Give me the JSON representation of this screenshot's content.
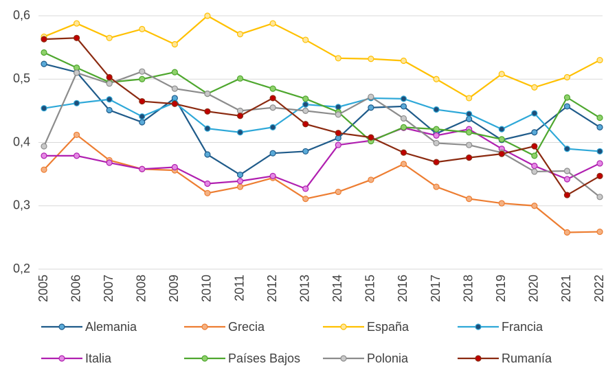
{
  "chart_data": {
    "type": "line",
    "categories": [
      "2005",
      "2006",
      "2007",
      "2008",
      "2009",
      "2010",
      "2011",
      "2012",
      "2013",
      "2014",
      "2015",
      "2016",
      "2017",
      "2018",
      "2019",
      "2020",
      "2021",
      "2022"
    ],
    "ylim": [
      0.2,
      0.6
    ],
    "yticks": [
      {
        "value": 0.2,
        "label": "0,2"
      },
      {
        "value": 0.3,
        "label": "0,3"
      },
      {
        "value": 0.4,
        "label": "0,4"
      },
      {
        "value": 0.5,
        "label": "0,5"
      },
      {
        "value": 0.6,
        "label": "0,6"
      }
    ],
    "grid": true,
    "legend": "bottom",
    "series": [
      {
        "name": "Alemania",
        "color": "#1f5b8a",
        "marker_color": "#5aaad8",
        "values": [
          0.524,
          0.511,
          0.451,
          0.432,
          0.47,
          0.381,
          0.349,
          0.383,
          0.386,
          0.407,
          0.455,
          0.457,
          0.414,
          0.437,
          0.404,
          0.416,
          0.457,
          0.424
        ]
      },
      {
        "name": "Grecia",
        "color": "#ed7d31",
        "marker_color": "#f4b183",
        "values": [
          0.357,
          0.412,
          0.372,
          0.358,
          0.356,
          0.32,
          0.33,
          0.344,
          0.311,
          0.322,
          0.341,
          0.366,
          0.33,
          0.311,
          0.304,
          0.3,
          0.258,
          0.259
        ]
      },
      {
        "name": "España",
        "color": "#ffc000",
        "marker_color": "#ffe699",
        "values": [
          0.567,
          0.588,
          0.565,
          0.579,
          0.555,
          0.6,
          0.571,
          0.588,
          0.562,
          0.533,
          0.532,
          0.529,
          0.5,
          0.47,
          0.508,
          0.487,
          0.503,
          0.53
        ]
      },
      {
        "name": "Francia",
        "color": "#2ea8d8",
        "marker_color": "#1f4e79",
        "values": [
          0.454,
          0.462,
          0.468,
          0.441,
          0.463,
          0.422,
          0.416,
          0.424,
          0.46,
          0.456,
          0.47,
          0.469,
          0.452,
          0.445,
          0.421,
          0.446,
          0.39,
          0.386
        ]
      },
      {
        "name": "Italia",
        "color": "#b01fb0",
        "marker_color": "#e48ae4",
        "values": [
          0.379,
          0.379,
          0.368,
          0.358,
          0.361,
          0.335,
          0.339,
          0.347,
          0.327,
          0.396,
          0.403,
          0.423,
          0.411,
          0.421,
          0.39,
          0.363,
          0.342,
          0.367
        ]
      },
      {
        "name": "Países Bajos",
        "color": "#4ea72e",
        "marker_color": "#8fd16b",
        "values": [
          0.542,
          0.518,
          0.495,
          0.5,
          0.511,
          0.477,
          0.501,
          0.485,
          0.469,
          0.448,
          0.402,
          0.424,
          0.421,
          0.416,
          0.405,
          0.379,
          0.471,
          0.439
        ]
      },
      {
        "name": "Polonia",
        "color": "#8c8c8c",
        "marker_color": "#c9c9c9",
        "values": [
          0.394,
          0.51,
          0.493,
          0.512,
          0.485,
          0.477,
          0.45,
          0.455,
          0.45,
          0.444,
          0.472,
          0.438,
          0.399,
          0.396,
          0.384,
          0.354,
          0.355,
          0.314
        ]
      },
      {
        "name": "Rumanía",
        "color": "#8b2a10",
        "marker_color": "#c00000",
        "values": [
          0.563,
          0.565,
          0.503,
          0.465,
          0.461,
          0.449,
          0.442,
          0.47,
          0.429,
          0.415,
          0.408,
          0.384,
          0.369,
          0.376,
          0.382,
          0.394,
          0.317,
          0.347
        ]
      }
    ]
  }
}
